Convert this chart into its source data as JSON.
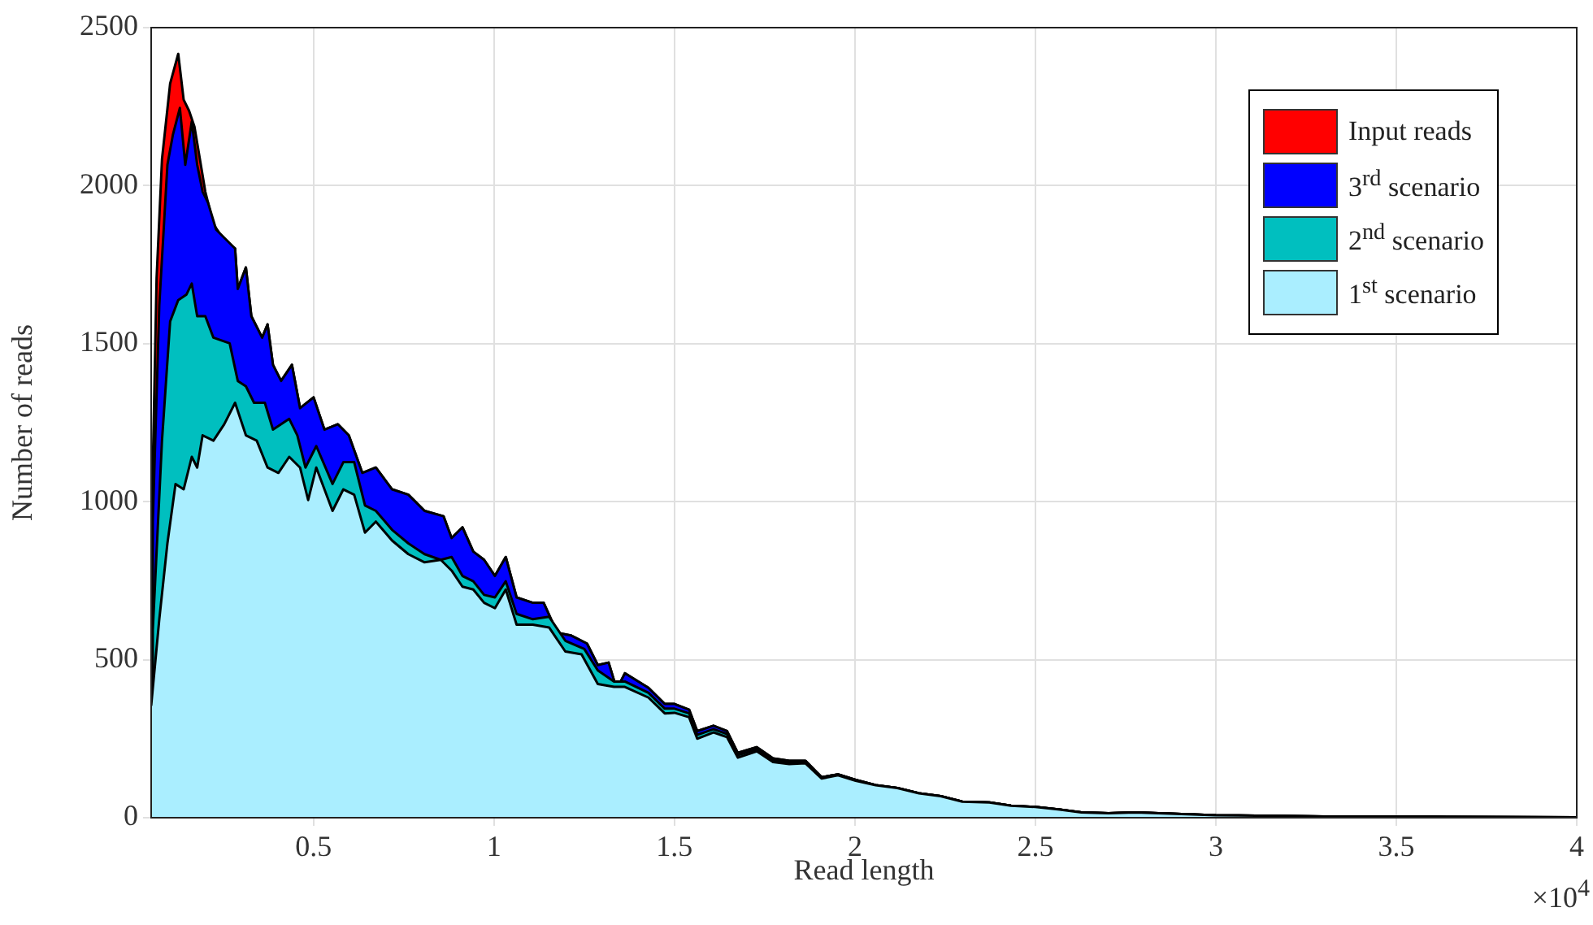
{
  "chart_data": {
    "type": "area",
    "xlabel": "Read length",
    "ylabel": "Number of reads",
    "xlim": [
      0.05,
      4
    ],
    "ylim": [
      0,
      2500
    ],
    "xticks": [
      0.5,
      1,
      1.5,
      2,
      2.5,
      3,
      3.5,
      4
    ],
    "yticks": [
      0,
      500,
      1000,
      1500,
      2000,
      2500
    ],
    "grid": true,
    "legend": "top right",
    "line_style": "solid",
    "marker": "none",
    "annotations": [
      "×10$^{4}$"
    ],
    "series": [
      {
        "name": "Input reads",
        "color": "#ff0000",
        "x": [
          0.05,
          0.0545,
          0.065,
          0.08,
          0.1025,
          0.125,
          0.14,
          0.155,
          0.17,
          0.185,
          0.2,
          0.2225,
          0.2525,
          0.2825,
          0.29,
          0.3125,
          0.3275,
          0.3575,
          0.3725,
          0.3875,
          0.41,
          0.44,
          0.4625,
          0.5,
          0.53,
          0.5675,
          0.5975,
          0.635,
          0.6725,
          0.7175,
          0.7625,
          0.8075,
          0.86,
          0.8825,
          0.9125,
          0.9425,
          0.9725,
          1.0025,
          1.0325,
          1.0625,
          1.1075,
          1.1375,
          1.175,
          1.2125,
          1.2575,
          1.2875,
          1.3175,
          1.34,
          1.3625,
          1.428,
          1.473,
          1.5,
          1.5405,
          1.563,
          1.608,
          1.6455,
          1.6755,
          1.728,
          1.773,
          1.818,
          1.863,
          1.908,
          1.953,
          2.002,
          2.0575,
          2.1175,
          2.1775,
          2.2375,
          2.2975,
          2.3725,
          2.4325,
          2.5,
          2.5675,
          2.6275,
          2.7025,
          2.7775,
          3,
          3.3,
          3.6,
          4
        ],
        "values": [
          0,
          1108,
          1707,
          2084,
          2323,
          2417,
          2272,
          2237,
          2186,
          2084,
          1981,
          1878,
          1827,
          1801,
          1673,
          1741,
          1587,
          1519,
          1561,
          1433,
          1382,
          1433,
          1296,
          1330,
          1228,
          1245,
          1210,
          1091,
          1108,
          1039,
          1022,
          971,
          954,
          885,
          919,
          842,
          816,
          765,
          825,
          697,
          680,
          680,
          585,
          577,
          551,
          483,
          491,
          406,
          457,
          411,
          360,
          360,
          342,
          274,
          291,
          274,
          205,
          223,
          188,
          180,
          180,
          128,
          137,
          120,
          103,
          94,
          77,
          68,
          51,
          48,
          38,
          34,
          26,
          17,
          14,
          17,
          8,
          4,
          3,
          1
        ]
      },
      {
        "name": "3$^{rd}$ scenario",
        "color": "#0000ff",
        "x": [
          0.05,
          0.0545,
          0.0725,
          0.095,
          0.11,
          0.1295,
          0.1445,
          0.1625,
          0.1775,
          0.1925,
          0.2075,
          0.23,
          0.2525,
          0.2825,
          0.29,
          0.3125,
          0.3275,
          0.3575,
          0.3725,
          0.3875,
          0.41,
          0.44,
          0.4625,
          0.5,
          0.53,
          0.5675,
          0.5975,
          0.635,
          0.6725,
          0.7175,
          0.7625,
          0.8075,
          0.86,
          0.8825,
          0.9125,
          0.9425,
          0.9725,
          1.0025,
          1.0325,
          1.0625,
          1.1075,
          1.1375,
          1.175,
          1.2125,
          1.2575,
          1.2875,
          1.3175,
          1.34,
          1.3625,
          1.428,
          1.473,
          1.5,
          1.5405,
          1.563,
          1.608,
          1.6455,
          1.6755,
          1.728,
          1.773,
          1.818,
          1.863,
          1.908,
          1.953,
          2.002,
          2.0575,
          2.1175,
          2.1775,
          2.2375,
          2.2975,
          2.3725,
          2.4325,
          2.5,
          2.5675,
          2.6275,
          2.7025,
          2.7775,
          3,
          3.3,
          3.6,
          4
        ],
        "values": [
          0,
          936,
          1621,
          2066,
          2160,
          2246,
          2066,
          2203,
          2066,
          1981,
          1946,
          1861,
          1835,
          1801,
          1673,
          1741,
          1587,
          1519,
          1561,
          1433,
          1382,
          1433,
          1296,
          1330,
          1228,
          1245,
          1210,
          1091,
          1108,
          1039,
          1022,
          971,
          954,
          885,
          919,
          842,
          816,
          765,
          825,
          697,
          680,
          680,
          585,
          577,
          551,
          483,
          491,
          406,
          457,
          411,
          360,
          360,
          342,
          274,
          291,
          274,
          205,
          223,
          188,
          180,
          180,
          128,
          137,
          120,
          103,
          94,
          77,
          68,
          51,
          48,
          38,
          34,
          26,
          17,
          14,
          17,
          8,
          4,
          3,
          1
        ]
      },
      {
        "name": "2$^{nd}$ scenario",
        "color": "#00bfbf",
        "x": [
          0.05,
          0.0545,
          0.08,
          0.1025,
          0.125,
          0.1475,
          0.1625,
          0.1775,
          0.2,
          0.2225,
          0.2675,
          0.29,
          0.3125,
          0.335,
          0.365,
          0.3875,
          0.4325,
          0.455,
          0.4775,
          0.5075,
          0.5525,
          0.5825,
          0.6125,
          0.6425,
          0.6725,
          0.7175,
          0.7625,
          0.8075,
          0.8525,
          0.8825,
          0.9125,
          0.9425,
          0.9725,
          1.0025,
          1.0325,
          1.0625,
          1.1075,
          1.1525,
          1.1975,
          1.25,
          1.2875,
          1.3325,
          1.3625,
          1.428,
          1.473,
          1.5,
          1.5405,
          1.563,
          1.608,
          1.6455,
          1.6755,
          1.728,
          1.773,
          1.818,
          1.863,
          1.908,
          1.953,
          2.002,
          2.0575,
          2.1175,
          2.1775,
          2.2375,
          2.2975,
          2.3725,
          2.4325,
          2.5,
          2.5675,
          2.6275,
          2.7025,
          2.7775,
          3,
          3.3,
          3.6,
          4
        ],
        "values": [
          0,
          594,
          1193,
          1570,
          1638,
          1655,
          1690,
          1587,
          1587,
          1519,
          1501,
          1382,
          1365,
          1313,
          1313,
          1228,
          1262,
          1210,
          1108,
          1176,
          1056,
          1125,
          1125,
          988,
          971,
          911,
          868,
          834,
          816,
          825,
          765,
          748,
          705,
          697,
          748,
          645,
          628,
          636,
          560,
          534,
          466,
          431,
          431,
          395,
          345,
          345,
          330,
          262,
          280,
          265,
          198,
          216,
          182,
          175,
          176,
          128,
          137,
          120,
          103,
          94,
          77,
          68,
          51,
          48,
          38,
          34,
          26,
          17,
          14,
          17,
          8,
          4,
          3,
          1
        ]
      },
      {
        "name": "1$^{st}$ scenario",
        "color": "#aaeeff",
        "x": [
          0.05,
          0.0725,
          0.095,
          0.1175,
          0.14,
          0.1625,
          0.1775,
          0.1925,
          0.2225,
          0.2525,
          0.2825,
          0.3125,
          0.3425,
          0.3725,
          0.4025,
          0.4325,
          0.4625,
          0.485,
          0.5075,
          0.5525,
          0.5825,
          0.6125,
          0.6425,
          0.6725,
          0.7175,
          0.7625,
          0.8075,
          0.8525,
          0.8825,
          0.9125,
          0.9425,
          0.9725,
          1.0025,
          1.0325,
          1.0625,
          1.1075,
          1.1525,
          1.1975,
          1.2425,
          1.2875,
          1.3325,
          1.3625,
          1.428,
          1.473,
          1.5,
          1.5405,
          1.563,
          1.608,
          1.6455,
          1.6755,
          1.728,
          1.773,
          1.818,
          1.863,
          1.908,
          1.953,
          2.002,
          2.0575,
          2.1175,
          2.1775,
          2.2375,
          2.2975,
          2.3725,
          2.4325,
          2.5,
          2.5675,
          2.6275,
          2.7025,
          2.7775,
          3,
          3.3,
          3.6,
          4
        ],
        "values": [
          354,
          628,
          868,
          1056,
          1039,
          1142,
          1108,
          1210,
          1193,
          1245,
          1313,
          1210,
          1193,
          1108,
          1091,
          1142,
          1108,
          1005,
          1108,
          971,
          1039,
          1022,
          902,
          937,
          877,
          834,
          808,
          816,
          782,
          731,
          722,
          680,
          663,
          722,
          611,
          611,
          602,
          526,
          517,
          423,
          414,
          414,
          380,
          330,
          332,
          318,
          250,
          270,
          255,
          190,
          210,
          176,
          170,
          172,
          124,
          134,
          117,
          103,
          94,
          77,
          68,
          51,
          48,
          38,
          34,
          26,
          17,
          14,
          17,
          8,
          4,
          3,
          1
        ]
      }
    ]
  }
}
